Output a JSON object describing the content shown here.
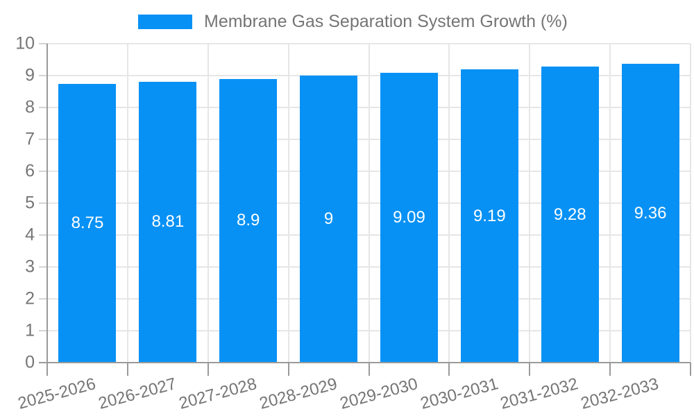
{
  "legend": {
    "label": "Membrane Gas Separation System Growth (%)",
    "swatch_color": "#0791F5"
  },
  "chart_data": {
    "type": "bar",
    "title": "Membrane Gas Separation System Growth (%)",
    "categories": [
      "2025-2026",
      "2026-2027",
      "2027-2028",
      "2028-2029",
      "2029-2030",
      "2030-2031",
      "2031-2032",
      "2032-2033"
    ],
    "values": [
      8.75,
      8.81,
      8.9,
      9,
      9.09,
      9.19,
      9.28,
      9.36
    ],
    "bar_labels": [
      "8.75",
      "8.81",
      "8.9",
      "9",
      "9.09",
      "9.19",
      "9.28",
      "9.36"
    ],
    "ytick_labels": [
      "0",
      "1",
      "2",
      "3",
      "4",
      "5",
      "6",
      "7",
      "8",
      "9",
      "10"
    ],
    "xlabel": "",
    "ylabel": "",
    "ylim": [
      0,
      10
    ],
    "ytick_step": 1,
    "grid": true,
    "legend_position": "top",
    "bar_color": "#0791F5",
    "bar_value_label_color": "#ffffff",
    "axis_text_color": "#757575"
  }
}
